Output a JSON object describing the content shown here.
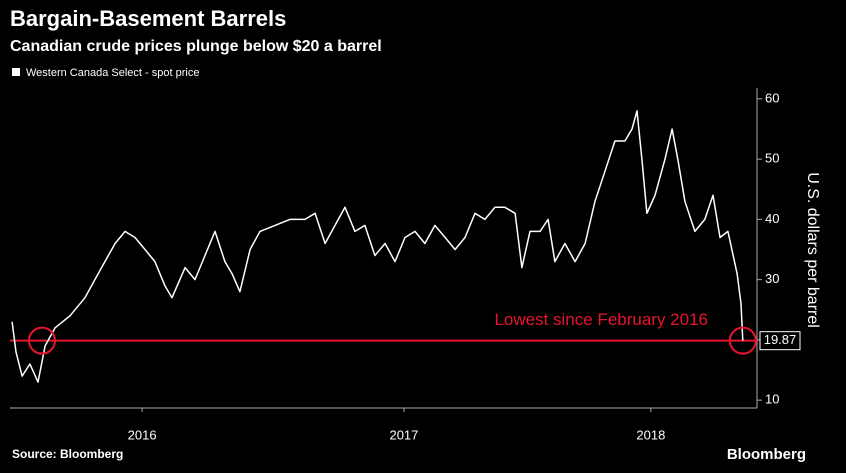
{
  "chart_data": {
    "type": "line",
    "title": "Bargain-Basement Barrels",
    "subtitle": "Canadian crude prices plunge below $20 a barrel",
    "y_axis_label": "U.S. dollars per barrel",
    "source": "Source: Bloomberg",
    "brand": "Bloomberg",
    "annotation": "Lowest since February 2016",
    "hline": 19.87,
    "hline_color": "#e8142f",
    "highlight_x": [
      2016.102,
      2018.776
    ],
    "xlim": [
      2015.98,
      2018.83
    ],
    "xticks": [
      {
        "value": 2016.484,
        "label": "2016"
      },
      {
        "value": 2017.483,
        "label": "2017"
      },
      {
        "value": 2018.425,
        "label": "2018"
      }
    ],
    "ylim": [
      8.7,
      61.8
    ],
    "yticks": [
      10,
      20,
      30,
      40,
      50,
      60
    ],
    "x": [
      2015.988,
      2016.003,
      2016.026,
      2016.056,
      2016.087,
      2016.114,
      2016.152,
      2016.209,
      2016.266,
      2016.304,
      2016.342,
      2016.381,
      2016.419,
      2016.457,
      2016.495,
      2016.533,
      2016.571,
      2016.598,
      2016.648,
      2016.686,
      2016.724,
      2016.762,
      2016.8,
      2016.827,
      2016.857,
      2016.896,
      2016.934,
      2016.991,
      2017.048,
      2017.105,
      2017.144,
      2017.182,
      2017.22,
      2017.258,
      2017.296,
      2017.334,
      2017.372,
      2017.411,
      2017.449,
      2017.487,
      2017.525,
      2017.563,
      2017.601,
      2017.64,
      2017.678,
      2017.716,
      2017.754,
      2017.792,
      2017.83,
      2017.868,
      2017.907,
      2017.933,
      2017.964,
      2018.002,
      2018.033,
      2018.059,
      2018.097,
      2018.136,
      2018.174,
      2018.212,
      2018.25,
      2018.288,
      2018.326,
      2018.353,
      2018.372,
      2018.391,
      2018.41,
      2018.441,
      2018.479,
      2018.506,
      2018.528,
      2018.555,
      2018.593,
      2018.631,
      2018.662,
      2018.689,
      2018.719,
      2018.754,
      2018.769,
      2018.776
    ],
    "series": [
      {
        "name": "Western Canada Select - spot price",
        "color": "#ffffff",
        "values": [
          23,
          18,
          14,
          16,
          13,
          19,
          22,
          24,
          27,
          30,
          33,
          36,
          38,
          37,
          35,
          33,
          29,
          27,
          32,
          30,
          34,
          38,
          33,
          31,
          28,
          35,
          38,
          39,
          40,
          40,
          41,
          36,
          39,
          42,
          38,
          39,
          34,
          36,
          33,
          37,
          38,
          36,
          39,
          37,
          35,
          37,
          41,
          40,
          42,
          42,
          41,
          32,
          38,
          38,
          40,
          33,
          36,
          33,
          36,
          43,
          48,
          53,
          53,
          55,
          58,
          50,
          41,
          44,
          50,
          55,
          50,
          43,
          38,
          40,
          44,
          37,
          38,
          31,
          26,
          19.87
        ]
      }
    ]
  }
}
